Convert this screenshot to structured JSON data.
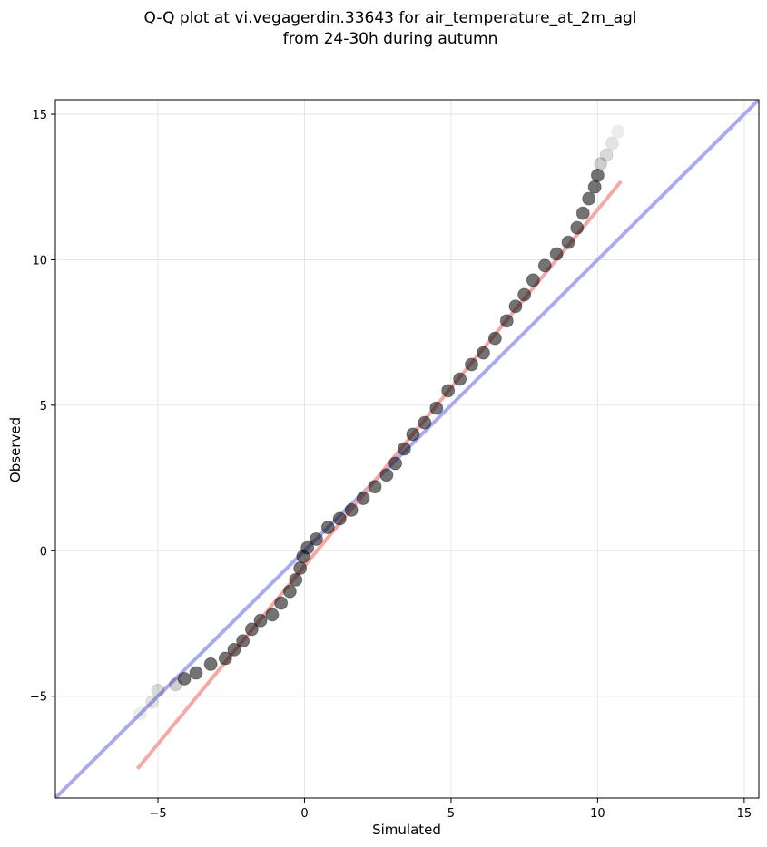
{
  "chart_data": {
    "type": "scatter",
    "title": "Q-Q plot at vi.vegagerdin.33643 for air_temperature_at_2m_agl",
    "subtitle": "from 24-30h during autumn",
    "xlabel": "Simulated",
    "ylabel": "Observed",
    "xlim": [
      -8.5,
      15.5
    ],
    "ylim": [
      -8.5,
      15.5
    ],
    "xticks": [
      -5,
      0,
      5,
      10,
      15
    ],
    "yticks": [
      -5,
      0,
      5,
      10,
      15
    ],
    "xtick_labels": [
      "−5",
      "0",
      "5",
      "10",
      "15"
    ],
    "ytick_labels": [
      "−5",
      "0",
      "5",
      "10",
      "15"
    ],
    "grid": true,
    "colors": {
      "identity_line": "#aaaaee",
      "fit_line": "#f4a8a8",
      "points": "#000000"
    },
    "lines": [
      {
        "kind": "identity",
        "x": [
          -8.5,
          15.5
        ],
        "y": [
          -8.5,
          15.5
        ]
      },
      {
        "kind": "fit",
        "x": [
          -5.7,
          10.8
        ],
        "y": [
          -7.5,
          12.7
        ]
      }
    ],
    "points": [
      {
        "x": -5.6,
        "y": -5.6
      },
      {
        "x": -5.2,
        "y": -5.2
      },
      {
        "x": -5.0,
        "y": -4.8
      },
      {
        "x": -4.4,
        "y": -4.6
      },
      {
        "x": -4.1,
        "y": -4.4
      },
      {
        "x": -3.7,
        "y": -4.2
      },
      {
        "x": -3.2,
        "y": -3.9
      },
      {
        "x": -2.7,
        "y": -3.7
      },
      {
        "x": -2.4,
        "y": -3.4
      },
      {
        "x": -2.1,
        "y": -3.1
      },
      {
        "x": -1.8,
        "y": -2.7
      },
      {
        "x": -1.5,
        "y": -2.4
      },
      {
        "x": -1.1,
        "y": -2.2
      },
      {
        "x": -0.8,
        "y": -1.8
      },
      {
        "x": -0.5,
        "y": -1.4
      },
      {
        "x": -0.3,
        "y": -1.0
      },
      {
        "x": -0.15,
        "y": -0.6
      },
      {
        "x": -0.05,
        "y": -0.2
      },
      {
        "x": 0.1,
        "y": 0.1
      },
      {
        "x": 0.4,
        "y": 0.4
      },
      {
        "x": 0.8,
        "y": 0.8
      },
      {
        "x": 1.2,
        "y": 1.1
      },
      {
        "x": 1.6,
        "y": 1.4
      },
      {
        "x": 2.0,
        "y": 1.8
      },
      {
        "x": 2.4,
        "y": 2.2
      },
      {
        "x": 2.8,
        "y": 2.6
      },
      {
        "x": 3.1,
        "y": 3.0
      },
      {
        "x": 3.4,
        "y": 3.5
      },
      {
        "x": 3.7,
        "y": 4.0
      },
      {
        "x": 4.1,
        "y": 4.4
      },
      {
        "x": 4.5,
        "y": 4.9
      },
      {
        "x": 4.9,
        "y": 5.5
      },
      {
        "x": 5.3,
        "y": 5.9
      },
      {
        "x": 5.7,
        "y": 6.4
      },
      {
        "x": 6.1,
        "y": 6.8
      },
      {
        "x": 6.5,
        "y": 7.3
      },
      {
        "x": 6.9,
        "y": 7.9
      },
      {
        "x": 7.2,
        "y": 8.4
      },
      {
        "x": 7.5,
        "y": 8.8
      },
      {
        "x": 7.8,
        "y": 9.3
      },
      {
        "x": 8.2,
        "y": 9.8
      },
      {
        "x": 8.6,
        "y": 10.2
      },
      {
        "x": 9.0,
        "y": 10.6
      },
      {
        "x": 9.3,
        "y": 11.1
      },
      {
        "x": 9.5,
        "y": 11.6
      },
      {
        "x": 9.7,
        "y": 12.1
      },
      {
        "x": 9.9,
        "y": 12.5
      },
      {
        "x": 10.0,
        "y": 12.9
      },
      {
        "x": 10.1,
        "y": 13.3
      },
      {
        "x": 10.3,
        "y": 13.6
      },
      {
        "x": 10.5,
        "y": 14.0
      },
      {
        "x": 10.7,
        "y": 14.4
      }
    ]
  }
}
